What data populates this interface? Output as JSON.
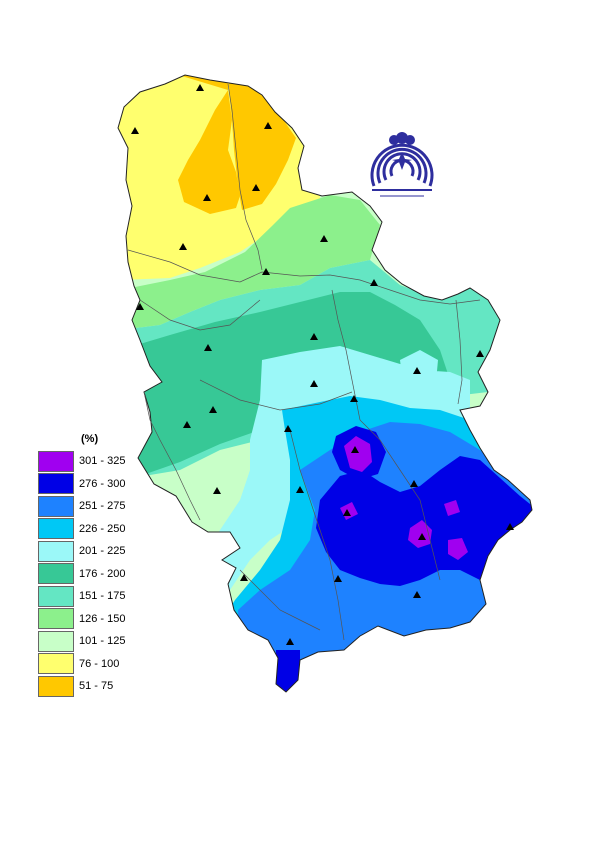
{
  "legend": {
    "title": "(%)",
    "items": [
      {
        "label": "301 - 325",
        "color": "#a000f0"
      },
      {
        "label": "276 - 300",
        "color": "#0000e6"
      },
      {
        "label": "251 - 275",
        "color": "#1e82ff"
      },
      {
        "label": "226 - 250",
        "color": "#00c8f5"
      },
      {
        "label": "201 - 225",
        "color": "#9bf8f8"
      },
      {
        "label": "176 - 200",
        "color": "#37c896"
      },
      {
        "label": "151 - 175",
        "color": "#64e6c3"
      },
      {
        "label": "126 - 150",
        "color": "#8cf08c"
      },
      {
        "label": "101 - 125",
        "color": "#c8ffc8"
      },
      {
        "label": "76 - 100",
        "color": "#ffff6e"
      },
      {
        "label": "51 - 75",
        "color": "#ffc800"
      }
    ]
  },
  "colors": {
    "boundary": "#222222",
    "river": "#555555",
    "station": "#000000",
    "logo": "#2e2e9e"
  },
  "icons": {
    "station": "station-triangle-icon",
    "logo": "hydrometeorological-service-emblem"
  }
}
